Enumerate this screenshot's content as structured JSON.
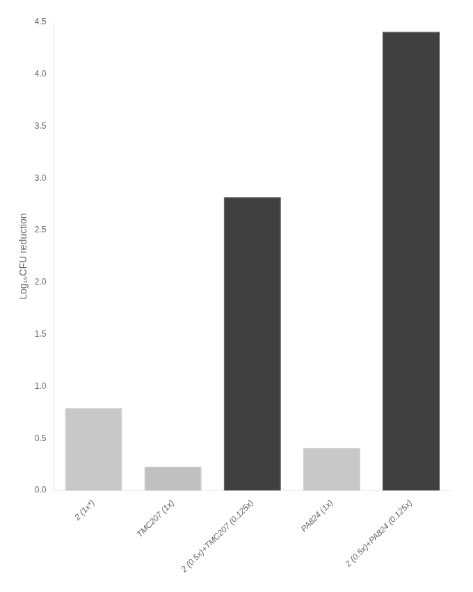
{
  "chart_data": {
    "type": "bar",
    "categories": [
      "2 (1x*)",
      "TMC207 (1x)",
      "2 (0.5x)+TMC207 (0.125x)",
      "PA824 (1x)",
      "2 (0.5x)+PA824 (0.125x)"
    ],
    "values": [
      0.79,
      0.23,
      2.82,
      0.41,
      4.41
    ],
    "colors": [
      "#c8c8c8",
      "#c0c0c0",
      "#404040",
      "#c8c8c8",
      "#404040"
    ],
    "y_label": "Log₁₀CFU reduction",
    "ylim": [
      0.0,
      4.5
    ],
    "yticks": [
      {
        "value": 0.0,
        "label": "0.0"
      },
      0.5,
      {
        "value": 1.0,
        "label": "1.0"
      },
      1.5,
      {
        "value": 2.0,
        "label": "2.0"
      },
      2.5,
      {
        "value": 3.0,
        "label": "3.0"
      },
      3.5,
      {
        "value": 4.0,
        "label": "4.0"
      },
      4.5
    ],
    "grid": false
  }
}
